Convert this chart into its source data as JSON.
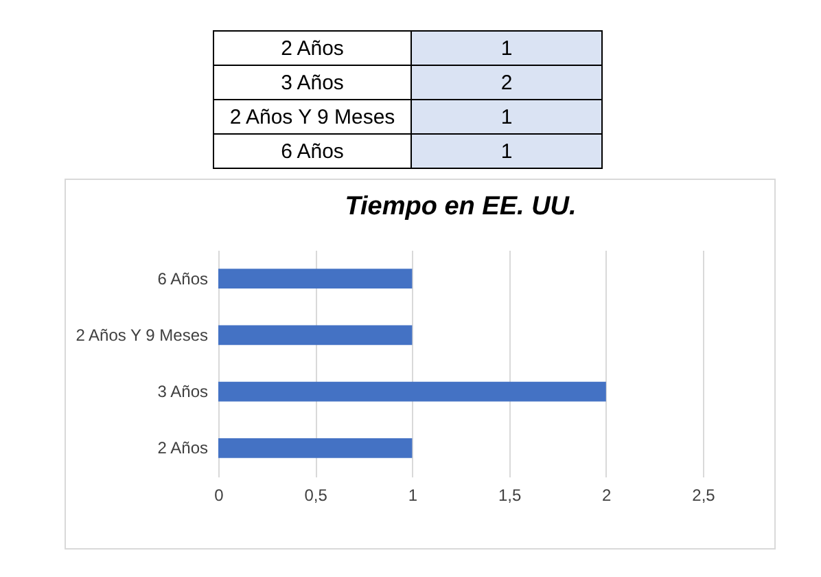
{
  "chart_data": [
    {
      "type": "other",
      "categories": [
        "2 Años",
        "3 Años",
        "2 Años Y 9 Meses",
        "6 Años"
      ],
      "value_labels": [
        "1",
        "2",
        "1",
        "1"
      ]
    },
    {
      "type": "bar",
      "orientation": "horizontal",
      "title": "Tiempo en EE. UU.",
      "categories": [
        "6 Años",
        "2 Años Y 9 Meses",
        "3 Años",
        "2 Años"
      ],
      "values": [
        1,
        1,
        2,
        1
      ],
      "color": "#4472c4",
      "xlim": [
        0,
        2.5
      ],
      "xticks": [
        0,
        {
          "value": 0.5,
          "label": "0,5"
        },
        1,
        {
          "value": 1.5,
          "label": "1,5"
        },
        2,
        {
          "value": 2.5,
          "label": "2,5"
        }
      ],
      "grid": "x"
    }
  ]
}
